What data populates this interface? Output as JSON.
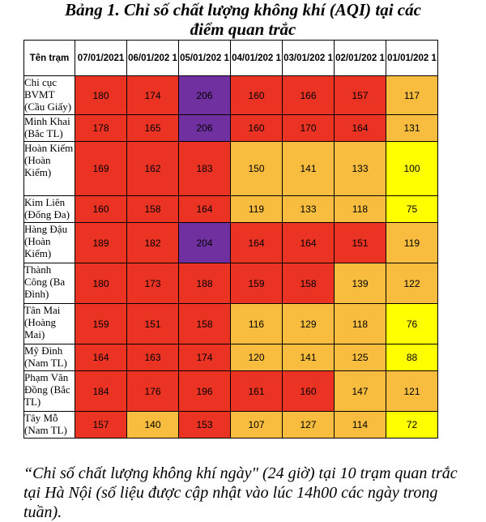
{
  "title_line1": "Bảng 1. Chỉ số chất lượng không khí (AQI) tại các",
  "title_line2": "điểm quan trắc",
  "header": {
    "station": "Tên trạm",
    "dates": [
      "07/01/2021",
      "06/01/202 1",
      "05/01/202 1",
      "04/01/202 1",
      "03/01/202 1",
      "02/01/202 1",
      "01/01/202 1"
    ]
  },
  "colors": {
    "red": "#ea3323",
    "purple": "#7030a0",
    "orange": "#f8bd3e",
    "yellow": "#ffff00"
  },
  "rows": [
    {
      "station": "Chi cục BVMT (Cầu Giấy)",
      "values": [
        180,
        174,
        206,
        160,
        166,
        157,
        117
      ],
      "colors": [
        "red",
        "red",
        "purple",
        "red",
        "red",
        "red",
        "orange"
      ]
    },
    {
      "station": "Minh Khai (Bắc TL)",
      "values": [
        178,
        165,
        206,
        160,
        170,
        164,
        131
      ],
      "colors": [
        "red",
        "red",
        "purple",
        "red",
        "red",
        "red",
        "orange"
      ]
    },
    {
      "station": "Hoàn Kiếm (Hoàn Kiếm)",
      "values": [
        169,
        162,
        183,
        150,
        141,
        133,
        100
      ],
      "colors": [
        "red",
        "red",
        "red",
        "orange",
        "orange",
        "orange",
        "yellow"
      ]
    },
    {
      "station": "Kim Liên (Đống Đa)",
      "values": [
        160,
        158,
        164,
        119,
        133,
        118,
        75
      ],
      "colors": [
        "red",
        "red",
        "red",
        "orange",
        "orange",
        "orange",
        "yellow"
      ]
    },
    {
      "station": "Hàng Đậu (Hoàn Kiếm)",
      "values": [
        189,
        182,
        204,
        164,
        164,
        151,
        119
      ],
      "colors": [
        "red",
        "red",
        "purple",
        "red",
        "red",
        "red",
        "orange"
      ]
    },
    {
      "station": "Thành Công (Ba Đình)",
      "values": [
        180,
        173,
        188,
        159,
        158,
        139,
        122
      ],
      "colors": [
        "red",
        "red",
        "red",
        "red",
        "red",
        "orange",
        "orange"
      ]
    },
    {
      "station": "Tân Mai (Hoàng Mai)",
      "values": [
        159,
        151,
        158,
        116,
        129,
        118,
        76
      ],
      "colors": [
        "red",
        "red",
        "red",
        "orange",
        "orange",
        "orange",
        "yellow"
      ]
    },
    {
      "station": "Mỹ Đình (Nam TL)",
      "values": [
        164,
        163,
        174,
        120,
        141,
        125,
        88
      ],
      "colors": [
        "red",
        "red",
        "red",
        "orange",
        "orange",
        "orange",
        "yellow"
      ]
    },
    {
      "station": "Phạm Văn Đồng (Bắc TL)",
      "values": [
        184,
        176,
        196,
        161,
        160,
        147,
        121
      ],
      "colors": [
        "red",
        "red",
        "red",
        "red",
        "red",
        "orange",
        "orange"
      ]
    },
    {
      "station": "Tây Mỗ (Nam TL)",
      "values": [
        157,
        140,
        153,
        107,
        127,
        114,
        72
      ],
      "colors": [
        "red",
        "orange",
        "red",
        "orange",
        "orange",
        "orange",
        "yellow"
      ]
    }
  ],
  "caption": "“Chỉ số chất lượng không khí ngày\" (24 giờ) tại 10 trạm quan trắc tại Hà Nội (số liệu được cập nhật vào lúc 14h00 các ngày trong tuần)."
}
